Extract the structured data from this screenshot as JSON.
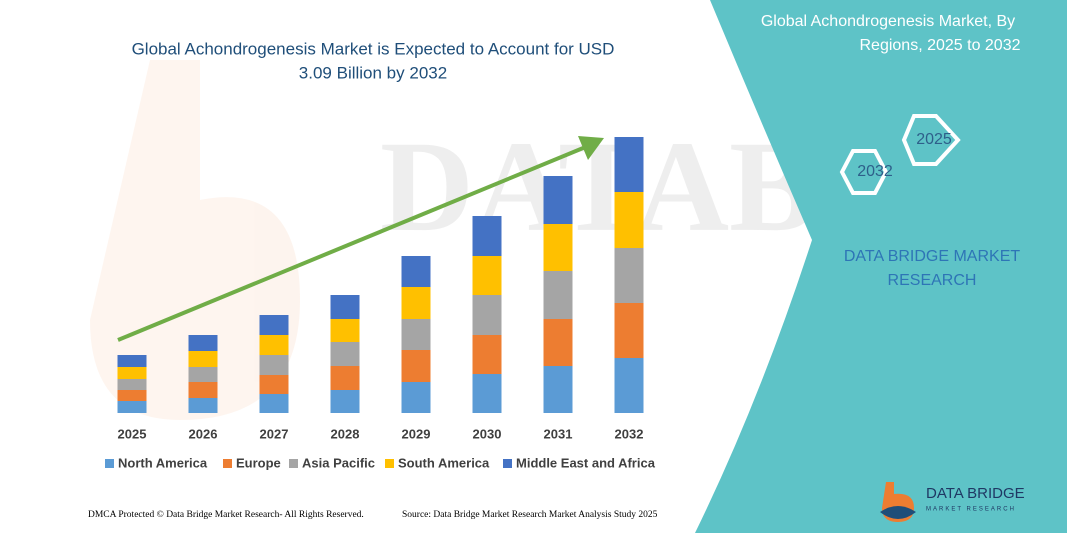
{
  "chart_data": {
    "type": "stacked_bar",
    "title": "Global Achondrogenesis Market is Expected to Account for USD",
    "subtitle": "3.09 Billion by 2032",
    "categories": [
      "2025",
      "2026",
      "2027",
      "2028",
      "2029",
      "2030",
      "2031",
      "2032"
    ],
    "series": [
      {
        "name": "North America",
        "color": "#5b9bd5",
        "values": [
          12,
          15,
          19,
          23,
          31,
          39,
          47,
          55
        ]
      },
      {
        "name": "Europe",
        "color": "#ed7d31",
        "values": [
          11,
          16,
          19,
          24,
          32,
          39,
          47,
          55
        ]
      },
      {
        "name": "Asia Pacific",
        "color": "#a5a5a5",
        "values": [
          11,
          15,
          20,
          24,
          31,
          40,
          48,
          55
        ]
      },
      {
        "name": "South America",
        "color": "#ffc000",
        "values": [
          12,
          16,
          20,
          23,
          32,
          39,
          47,
          56
        ]
      },
      {
        "name": "Middle East and Africa",
        "color": "#4472c4",
        "values": [
          12,
          16,
          20,
          24,
          31,
          40,
          48,
          55
        ]
      }
    ],
    "trend_color": "#70ad47"
  },
  "panel": {
    "title_line1": "Global Achondrogenesis Market, By",
    "title_line2": "Regions, 2025 to 2032",
    "hex_start": "2025",
    "hex_end": "2032",
    "brand_line1": "DATA BRIDGE MARKET",
    "brand_line2": "RESEARCH"
  },
  "logo": {
    "name": "DATA BRIDGE",
    "tagline": "MARKET RESEARCH"
  },
  "footer": {
    "left": "DMCA Protected © Data Bridge Market Research- All Rights Reserved.",
    "right": "Source: Data Bridge Market Research Market Analysis Study 2025"
  }
}
